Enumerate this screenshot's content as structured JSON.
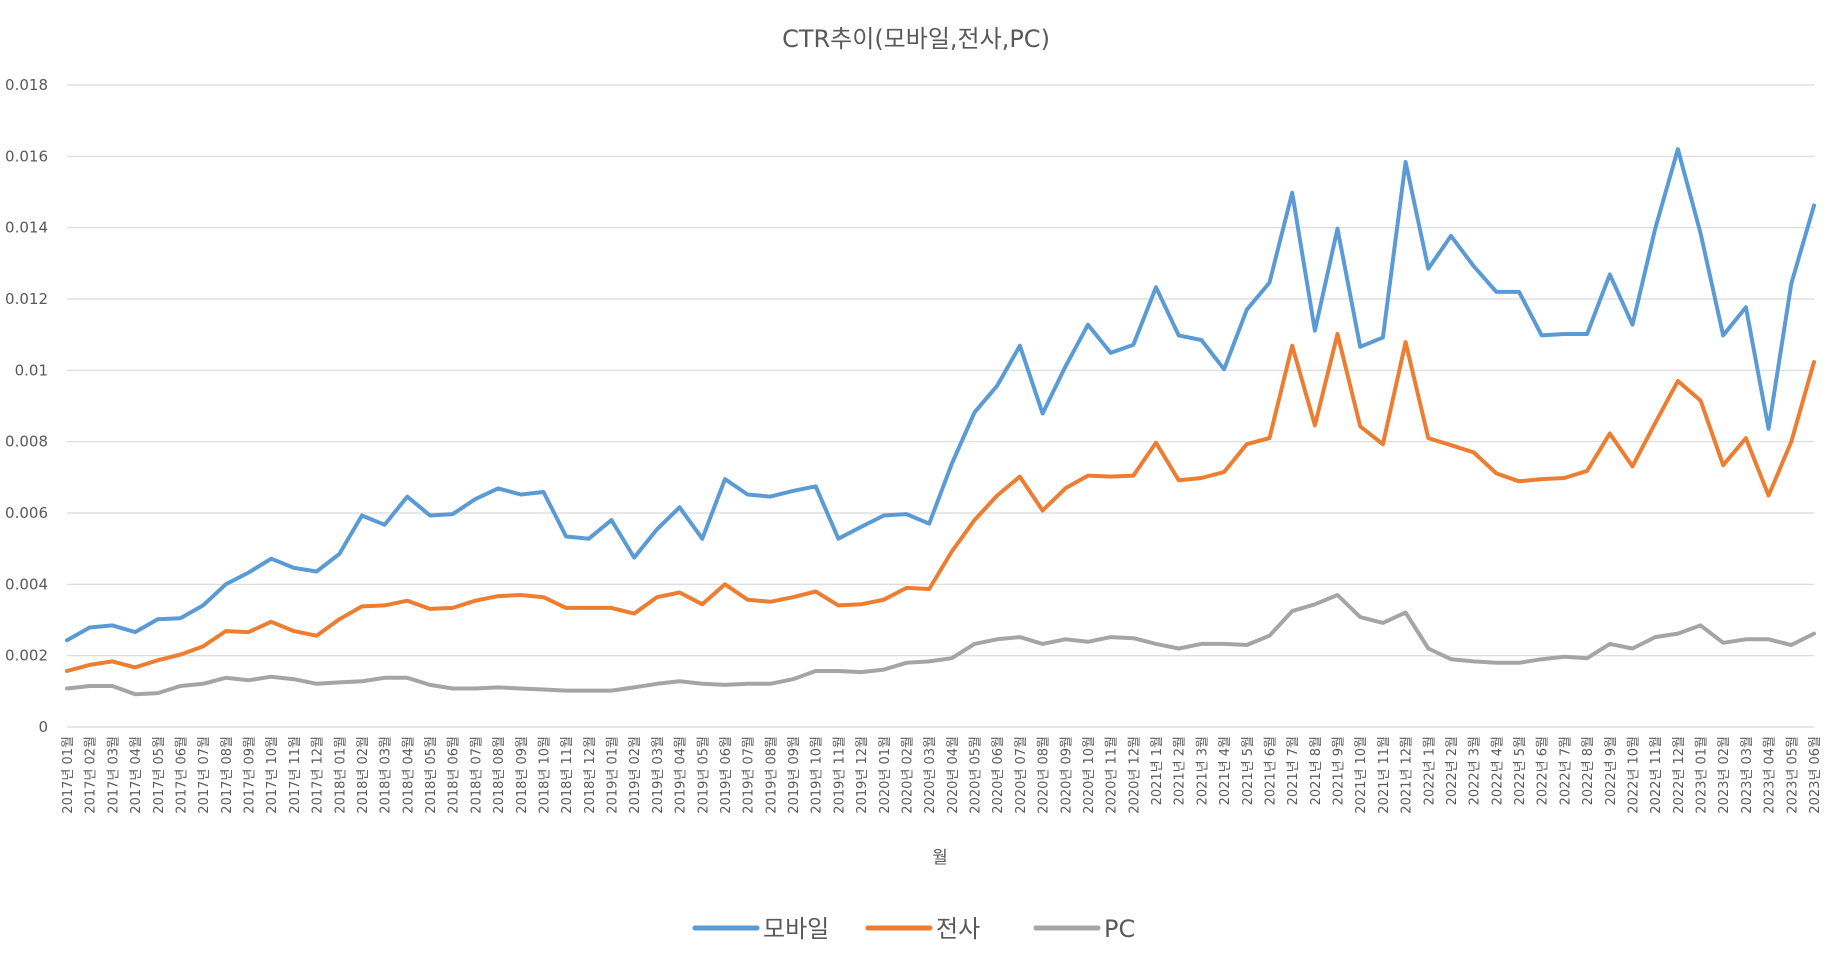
{
  "chart_data": {
    "type": "line",
    "title": "CTR추이(모바일,전사,PC)",
    "xlabel": "월",
    "ylabel": "",
    "ylim": [
      0,
      0.018
    ],
    "yticks": [
      "0",
      "0.002",
      "0.004",
      "0.006",
      "0.008",
      "0.01",
      "0.012",
      "0.014",
      "0.016",
      "0.018"
    ],
    "grid": true,
    "legend_position": "bottom",
    "categories": [
      "2017년 01월",
      "2017년 02월",
      "2017년 03월",
      "2017년 04월",
      "2017년 05월",
      "2017년 06월",
      "2017년 07월",
      "2017년 08월",
      "2017년 09월",
      "2017년 10월",
      "2017년 11월",
      "2017년 12월",
      "2018년 01월",
      "2018년 02월",
      "2018년 03월",
      "2018년 04월",
      "2018년 05월",
      "2018년 06월",
      "2018년 07월",
      "2018년 08월",
      "2018년 09월",
      "2018년 10월",
      "2018년 11월",
      "2018년 12월",
      "2019년 01월",
      "2019년 02월",
      "2019년 03월",
      "2019년 04월",
      "2019년 05월",
      "2019년 06월",
      "2019년 07월",
      "2019년 08월",
      "2019년 09월",
      "2019년 10월",
      "2019년 11월",
      "2019년 12월",
      "2020년 01월",
      "2020년 02월",
      "2020년 03월",
      "2020년 04월",
      "2020년 05월",
      "2020년 06월",
      "2020년 07월",
      "2020년 08월",
      "2020년 09월",
      "2020년 10월",
      "2020년 11월",
      "2020년 12월",
      "2021년 1월",
      "2021년 2월",
      "2021년 3월",
      "2021년 4월",
      "2021년 5월",
      "2021년 6월",
      "2021년 7월",
      "2021년 8월",
      "2021년 9월",
      "2021년 10월",
      "2021년 11월",
      "2021년 12월",
      "2022년 1월",
      "2022년 2월",
      "2022년 3월",
      "2022년 4월",
      "2022년 5월",
      "2022년 6월",
      "2022년 7월",
      "2022년 8월",
      "2022년 9월",
      "2022년 10월",
      "2022년 11월",
      "2022년 12월",
      "2023년 01월",
      "2023년 02월",
      "2023년 03월",
      "2023년 04월",
      "2023년 05월",
      "2023년 06월"
    ],
    "series": [
      {
        "name": "모바일",
        "color": "#5B9BD5",
        "values": [
          0.00243,
          0.00279,
          0.00285,
          0.00266,
          0.00302,
          0.00305,
          0.00341,
          0.004,
          0.00433,
          0.00472,
          0.00446,
          0.00436,
          0.00485,
          0.00593,
          0.00567,
          0.00646,
          0.00593,
          0.00597,
          0.00639,
          0.00669,
          0.00652,
          0.00659,
          0.00534,
          0.00528,
          0.0058,
          0.00475,
          0.00554,
          0.00616,
          0.00528,
          0.00695,
          0.00652,
          0.00646,
          0.00662,
          0.00675,
          0.00528,
          0.00561,
          0.00593,
          0.00597,
          0.0057,
          0.00738,
          0.00882,
          0.00957,
          0.01069,
          0.00879,
          0.0101,
          0.01128,
          0.01049,
          0.01072,
          0.01233,
          0.01098,
          0.01085,
          0.01003,
          0.0117,
          0.01246,
          0.01498,
          0.01111,
          0.01397,
          0.01066,
          0.01092,
          0.01584,
          0.01285,
          0.01377,
          0.01292,
          0.0122,
          0.0122,
          0.01098,
          0.01102,
          0.01102,
          0.01269,
          0.01128,
          0.01397,
          0.0162,
          0.01384,
          0.01098,
          0.01177,
          0.00836,
          0.01243,
          0.01462
        ]
      },
      {
        "name": "전사",
        "color": "#ED7D31",
        "values": [
          0.00157,
          0.00174,
          0.00184,
          0.00167,
          0.00187,
          0.00203,
          0.00226,
          0.00269,
          0.00266,
          0.00295,
          0.00269,
          0.00256,
          0.00302,
          0.00338,
          0.00341,
          0.00354,
          0.00331,
          0.00334,
          0.00354,
          0.00367,
          0.0037,
          0.00364,
          0.00334,
          0.00334,
          0.00334,
          0.00318,
          0.00364,
          0.00377,
          0.00344,
          0.004,
          0.00357,
          0.00351,
          0.00364,
          0.0038,
          0.00341,
          0.00344,
          0.00357,
          0.0039,
          0.00387,
          0.00492,
          0.0058,
          0.00649,
          0.00702,
          0.00607,
          0.00669,
          0.00705,
          0.00702,
          0.00705,
          0.00797,
          0.00692,
          0.00698,
          0.00715,
          0.00793,
          0.0081,
          0.01069,
          0.00846,
          0.01102,
          0.00843,
          0.00793,
          0.01079,
          0.0081,
          0.0079,
          0.0077,
          0.00711,
          0.00689,
          0.00695,
          0.00698,
          0.00718,
          0.00823,
          0.00731,
          0.00852,
          0.0097,
          0.00915,
          0.00734,
          0.0081,
          0.00649,
          0.008,
          0.01023
        ]
      },
      {
        "name": "PC",
        "color": "#A5A5A5",
        "values": [
          0.00108,
          0.00115,
          0.00115,
          0.00092,
          0.00095,
          0.00115,
          0.00121,
          0.00138,
          0.00131,
          0.00141,
          0.00134,
          0.00121,
          0.00125,
          0.00128,
          0.00138,
          0.00138,
          0.00118,
          0.00108,
          0.00108,
          0.00111,
          0.00108,
          0.00105,
          0.00102,
          0.00102,
          0.00102,
          0.00111,
          0.00121,
          0.00128,
          0.00121,
          0.00118,
          0.00121,
          0.00121,
          0.00134,
          0.00157,
          0.00157,
          0.00154,
          0.00161,
          0.0018,
          0.00184,
          0.00193,
          0.00233,
          0.00246,
          0.00252,
          0.00233,
          0.00246,
          0.00239,
          0.00252,
          0.00249,
          0.00233,
          0.0022,
          0.00233,
          0.00233,
          0.0023,
          0.00256,
          0.00325,
          0.00344,
          0.0037,
          0.00308,
          0.00292,
          0.00321,
          0.0022,
          0.0019,
          0.00184,
          0.0018,
          0.0018,
          0.0019,
          0.00197,
          0.00193,
          0.00233,
          0.0022,
          0.00252,
          0.00262,
          0.00285,
          0.00236,
          0.00246,
          0.00246,
          0.0023,
          0.00262
        ]
      }
    ]
  }
}
